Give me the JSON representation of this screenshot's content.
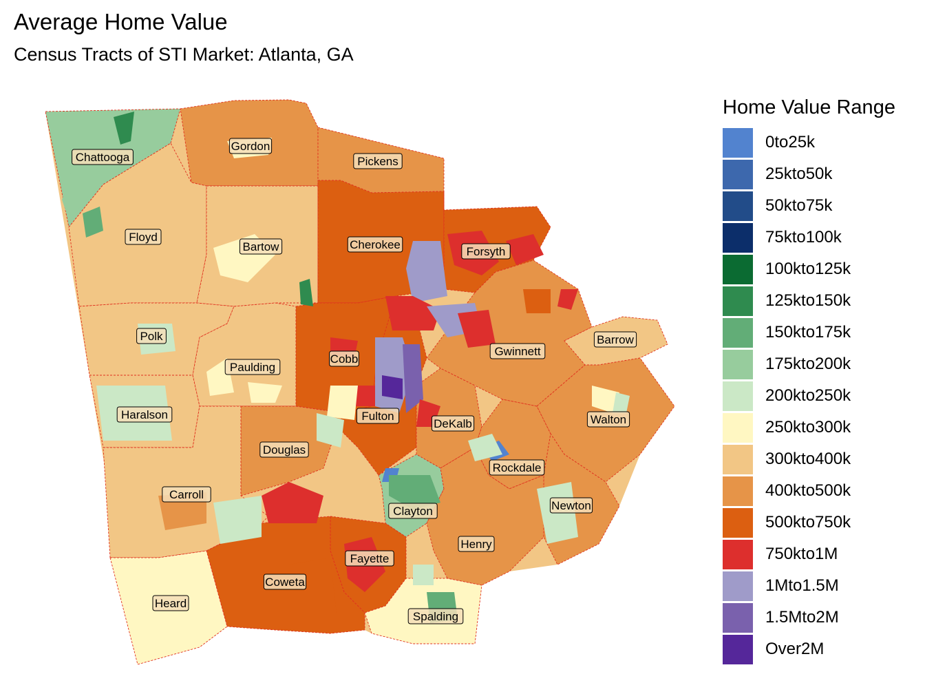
{
  "header": {
    "title": "Average Home Value",
    "subtitle": "Census Tracts of STI Market: Atlanta, GA"
  },
  "legend": {
    "title": "Home Value Range",
    "items": [
      {
        "label": "0to25k",
        "color": "#5283cf"
      },
      {
        "label": "25kto50k",
        "color": "#3d68ad"
      },
      {
        "label": "50kto75k",
        "color": "#224c89"
      },
      {
        "label": "75kto100k",
        "color": "#0c2e6a"
      },
      {
        "label": "100kto125k",
        "color": "#0b6b32"
      },
      {
        "label": "125kto150k",
        "color": "#2f8b4f"
      },
      {
        "label": "150kto175k",
        "color": "#62ad77"
      },
      {
        "label": "175kto200k",
        "color": "#97cc9d"
      },
      {
        "label": "200kto250k",
        "color": "#cbe8c6"
      },
      {
        "label": "250kto300k",
        "color": "#fff7c2"
      },
      {
        "label": "300kto400k",
        "color": "#f2c685"
      },
      {
        "label": "400kto500k",
        "color": "#e69448"
      },
      {
        "label": "500kto750k",
        "color": "#dc5f11"
      },
      {
        "label": "750kto1M",
        "color": "#dd2f2d"
      },
      {
        "label": "1Mto1.5M",
        "color": "#9f9bc9"
      },
      {
        "label": "1.5Mto2M",
        "color": "#7a61ad"
      },
      {
        "label": "Over2M",
        "color": "#55279a"
      }
    ]
  },
  "map": {
    "counties": [
      {
        "name": "Chattooga",
        "fill": "#97cc9d"
      },
      {
        "name": "Gordon",
        "fill": "#e69448"
      },
      {
        "name": "Pickens",
        "fill": "#e69448"
      },
      {
        "name": "Floyd",
        "fill": "#f2c685"
      },
      {
        "name": "Bartow",
        "fill": "#f2c685"
      },
      {
        "name": "Cherokee",
        "fill": "#dc5f11"
      },
      {
        "name": "Forsyth",
        "fill": "#dc5f11"
      },
      {
        "name": "Polk",
        "fill": "#f2c685"
      },
      {
        "name": "Paulding",
        "fill": "#f2c685"
      },
      {
        "name": "Cobb",
        "fill": "#dc5f11"
      },
      {
        "name": "Gwinnett",
        "fill": "#e69448"
      },
      {
        "name": "Barrow",
        "fill": "#f2c685"
      },
      {
        "name": "Haralson",
        "fill": "#f2c685"
      },
      {
        "name": "Fulton",
        "fill": "#dc5f11"
      },
      {
        "name": "DeKalb",
        "fill": "#e69448"
      },
      {
        "name": "Walton",
        "fill": "#e69448"
      },
      {
        "name": "Douglas",
        "fill": "#e69448"
      },
      {
        "name": "Rockdale",
        "fill": "#e69448"
      },
      {
        "name": "Carroll",
        "fill": "#f2c685"
      },
      {
        "name": "Clayton",
        "fill": "#97cc9d"
      },
      {
        "name": "Newton",
        "fill": "#e69448"
      },
      {
        "name": "Henry",
        "fill": "#e69448"
      },
      {
        "name": "Fayette",
        "fill": "#dc5f11"
      },
      {
        "name": "Coweta",
        "fill": "#dc5f11"
      },
      {
        "name": "Heard",
        "fill": "#fff7c2"
      },
      {
        "name": "Spalding",
        "fill": "#fff7c2"
      }
    ]
  }
}
